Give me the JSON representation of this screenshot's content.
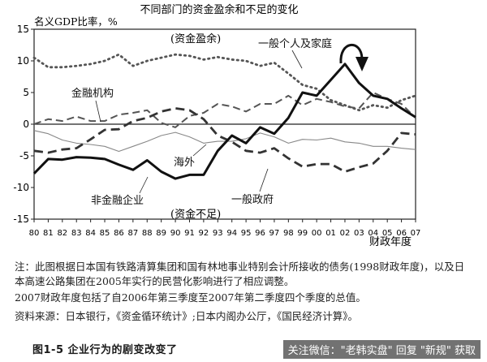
{
  "chart_data": {
    "type": "line",
    "title": "不同部门的资金盈余和不足的变化",
    "ylabel": "名义GDP比率，%",
    "xlabel": "财政年度",
    "x": [
      "80",
      "81",
      "82",
      "83",
      "84",
      "85",
      "86",
      "87",
      "88",
      "89",
      "90",
      "91",
      "92",
      "93",
      "94",
      "95",
      "96",
      "97",
      "98",
      "99",
      "00",
      "01",
      "02",
      "03",
      "04",
      "05",
      "06",
      "07"
    ],
    "ylim": [
      -15,
      15
    ],
    "yticks": [
      -15,
      -10,
      -5,
      0,
      5,
      10,
      15
    ],
    "grid": false,
    "legend": "inline-labels",
    "annotations": {
      "surplus": "(资金盈余)",
      "deficit": "(资金不足)"
    },
    "series": [
      {
        "name": "一般个人及家庭",
        "style": "dotted",
        "color": "#555555",
        "values": [
          10.5,
          9.0,
          9.0,
          9.2,
          9.5,
          10.0,
          11.0,
          9.2,
          10.0,
          10.5,
          11.0,
          10.8,
          10.2,
          10.6,
          10.2,
          10.0,
          9.2,
          9.7,
          8.0,
          6.2,
          5.6,
          3.8,
          3.0,
          2.2,
          3.0,
          2.6,
          3.8,
          4.5
        ]
      },
      {
        "name": "金融机构",
        "style": "dashed",
        "color": "#555555",
        "values": [
          0.0,
          0.8,
          0.5,
          1.2,
          0.5,
          0.5,
          1.5,
          1.8,
          2.2,
          0.2,
          -0.5,
          1.3,
          1.8,
          3.2,
          2.8,
          2.0,
          3.2,
          3.2,
          4.5,
          3.0,
          4.0,
          3.5,
          2.8,
          2.5,
          5.0,
          4.0,
          3.2,
          1.0
        ]
      },
      {
        "name": "海外",
        "style": "solid-thin",
        "color": "#888888",
        "values": [
          -1.0,
          -1.5,
          -2.5,
          -3.0,
          -3.2,
          -3.5,
          -4.3,
          -3.5,
          -2.7,
          -1.8,
          -1.3,
          -2.0,
          -3.0,
          -2.7,
          -2.7,
          -2.3,
          -1.4,
          -2.0,
          -3.0,
          -2.4,
          -2.5,
          -2.2,
          -2.8,
          -3.0,
          -3.5,
          -3.5,
          -3.8,
          -4.0
        ]
      },
      {
        "name": "一般政府",
        "style": "dashed-bold",
        "color": "#333333",
        "values": [
          -4.2,
          -4.5,
          -4.0,
          -3.8,
          -2.4,
          -0.9,
          -0.8,
          0.5,
          1.0,
          2.0,
          2.5,
          2.2,
          0.8,
          -1.8,
          -2.8,
          -4.2,
          -4.5,
          -3.8,
          -5.4,
          -6.7,
          -6.3,
          -6.3,
          -7.5,
          -6.8,
          -6.2,
          -4.2,
          -1.4,
          -1.6
        ]
      },
      {
        "name": "非金融企业",
        "style": "solid-bold",
        "color": "#111111",
        "values": [
          -7.8,
          -5.5,
          -5.6,
          -5.2,
          -5.3,
          -5.5,
          -6.4,
          -7.2,
          -5.7,
          -7.5,
          -8.6,
          -8.0,
          -8.0,
          -4.2,
          -1.8,
          -3.0,
          -0.5,
          -1.5,
          1.0,
          5.0,
          4.5,
          7.0,
          9.5,
          6.5,
          4.5,
          4.0,
          2.5,
          1.1
        ]
      }
    ]
  },
  "notes": {
    "line1": "注：此图根据日本国有铁路清算集团和国有林地事业特别会计所接收的债务(1998财政年度)，以及日本高速公路集团在2005年实行的民营化影响进行了相应调整。",
    "line2": "2007财政年度包括了自2006年第三季度至2007年第二季度四个季度的总值。",
    "line3": "资料来源：日本银行，《资金循环统计》;日本内阁办公厅，《国民经济计算》。"
  },
  "caption": "图1-5  企业行为的剧变改变了",
  "watermark": "关注微信：\"老韩实盘\" 回复 \"新规\" 获取"
}
